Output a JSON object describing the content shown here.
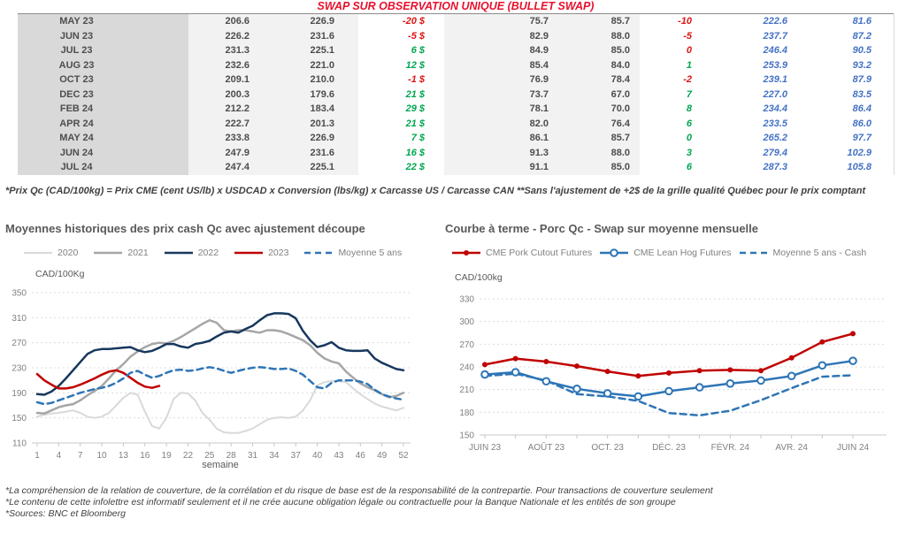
{
  "title": "SWAP SUR OBSERVATION UNIQUE (BULLET SWAP)",
  "table": {
    "rows": [
      {
        "month": "MAY 23",
        "qc_cme": "206.6",
        "qc_cash": "226.9",
        "qc_diff": "-20 $",
        "qc_diff_color": "neg",
        "us_cme": "75.7",
        "us_cash": "85.7",
        "us_diff": "-10",
        "us_diff_color": "neg",
        "swap_cad": "222.6",
        "swap_us": "81.6"
      },
      {
        "month": "JUN 23",
        "qc_cme": "226.2",
        "qc_cash": "231.6",
        "qc_diff": "-5 $",
        "qc_diff_color": "neg",
        "us_cme": "82.9",
        "us_cash": "88.0",
        "us_diff": "-5",
        "us_diff_color": "neg",
        "swap_cad": "237.7",
        "swap_us": "87.2"
      },
      {
        "month": "JUL 23",
        "qc_cme": "231.3",
        "qc_cash": "225.1",
        "qc_diff": "6 $",
        "qc_diff_color": "pos",
        "us_cme": "84.9",
        "us_cash": "85.0",
        "us_diff": "0",
        "us_diff_color": "neg",
        "swap_cad": "246.4",
        "swap_us": "90.5"
      },
      {
        "month": "AUG 23",
        "qc_cme": "232.6",
        "qc_cash": "221.0",
        "qc_diff": "12 $",
        "qc_diff_color": "pos",
        "us_cme": "85.4",
        "us_cash": "84.0",
        "us_diff": "1",
        "us_diff_color": "pos",
        "swap_cad": "253.9",
        "swap_us": "93.2"
      },
      {
        "month": "OCT 23",
        "qc_cme": "209.1",
        "qc_cash": "210.0",
        "qc_diff": "-1 $",
        "qc_diff_color": "neg",
        "us_cme": "76.9",
        "us_cash": "78.4",
        "us_diff": "-2",
        "us_diff_color": "neg",
        "swap_cad": "239.1",
        "swap_us": "87.9"
      },
      {
        "month": "DEC 23",
        "qc_cme": "200.3",
        "qc_cash": "179.6",
        "qc_diff": "21 $",
        "qc_diff_color": "pos",
        "us_cme": "73.7",
        "us_cash": "67.0",
        "us_diff": "7",
        "us_diff_color": "pos",
        "swap_cad": "227.0",
        "swap_us": "83.5"
      },
      {
        "month": "FEB 24",
        "qc_cme": "212.2",
        "qc_cash": "183.4",
        "qc_diff": "29 $",
        "qc_diff_color": "pos",
        "us_cme": "78.1",
        "us_cash": "70.0",
        "us_diff": "8",
        "us_diff_color": "pos",
        "swap_cad": "234.4",
        "swap_us": "86.4"
      },
      {
        "month": "APR 24",
        "qc_cme": "222.7",
        "qc_cash": "201.3",
        "qc_diff": "21 $",
        "qc_diff_color": "pos",
        "us_cme": "82.0",
        "us_cash": "76.4",
        "us_diff": "6",
        "us_diff_color": "pos",
        "swap_cad": "233.5",
        "swap_us": "86.0"
      },
      {
        "month": "MAY 24",
        "qc_cme": "233.8",
        "qc_cash": "226.9",
        "qc_diff": "7 $",
        "qc_diff_color": "pos",
        "us_cme": "86.1",
        "us_cash": "85.7",
        "us_diff": "0",
        "us_diff_color": "pos",
        "swap_cad": "265.2",
        "swap_us": "97.7"
      },
      {
        "month": "JUN 24",
        "qc_cme": "247.9",
        "qc_cash": "231.6",
        "qc_diff": "16 $",
        "qc_diff_color": "pos",
        "us_cme": "91.3",
        "us_cash": "88.0",
        "us_diff": "3",
        "us_diff_color": "pos",
        "swap_cad": "279.4",
        "swap_us": "102.9"
      },
      {
        "month": "JUL 24",
        "qc_cme": "247.4",
        "qc_cash": "225.1",
        "qc_diff": "22 $",
        "qc_diff_color": "pos",
        "us_cme": "91.1",
        "us_cash": "85.0",
        "us_diff": "6",
        "us_diff_color": "pos",
        "swap_cad": "287.3",
        "swap_us": "105.8"
      }
    ],
    "footnote": "*Prix Qc (CAD/100kg) = Prix CME (cent US/lb) x USDCAD x Conversion (lbs/kg) x Carcasse US / Carcasse CAN **Sans l'ajustement de +2$ de la grille qualité Québec pour le prix comptant"
  },
  "colors": {
    "title_red": "#e8112d",
    "negative": "#e01414",
    "positive": "#00a651",
    "swap_blue": "#4472c4",
    "navy_2022": "#17375e",
    "red_series": "#c00000",
    "steel_blue": "#2e75b6"
  },
  "chart_data": [
    {
      "type": "line",
      "title": "Moyennes historiques des prix cash Qc avec ajustement découpe",
      "y_unit": "CAD/100Kg",
      "xlabel": "semaine",
      "ylim": [
        110,
        350
      ],
      "ystep": 40,
      "x_ticks": [
        1,
        4,
        7,
        10,
        13,
        16,
        19,
        22,
        25,
        28,
        31,
        34,
        37,
        40,
        43,
        46,
        49,
        52
      ],
      "grid": true,
      "legend_position": "top",
      "series": [
        {
          "name": "2020",
          "color": "#d9d9d9",
          "width": 2,
          "values": [
            152,
            155,
            157,
            158,
            160,
            162,
            158,
            152,
            150,
            152,
            158,
            170,
            182,
            190,
            187,
            160,
            137,
            133,
            150,
            180,
            190,
            189,
            178,
            158,
            147,
            133,
            127,
            126,
            126,
            129,
            133,
            140,
            147,
            150,
            151,
            150,
            152,
            162,
            178,
            202,
            207,
            209,
            209,
            207,
            197,
            188,
            180,
            173,
            168,
            165,
            162,
            166
          ]
        },
        {
          "name": "2021",
          "color": "#a6a6a6",
          "width": 2.5,
          "values": [
            158,
            157,
            162,
            167,
            170,
            172,
            178,
            186,
            193,
            201,
            213,
            226,
            236,
            248,
            256,
            263,
            268,
            270,
            269,
            273,
            279,
            286,
            293,
            300,
            306,
            302,
            290,
            288,
            290,
            290,
            288,
            286,
            290,
            290,
            288,
            284,
            279,
            274,
            266,
            254,
            245,
            240,
            237,
            224,
            214,
            205,
            199,
            194,
            188,
            183,
            185,
            190
          ]
        },
        {
          "name": "2022",
          "color": "#17375e",
          "width": 2.5,
          "values": [
            188,
            187,
            192,
            201,
            213,
            226,
            239,
            252,
            258,
            260,
            260,
            261,
            262,
            263,
            258,
            255,
            257,
            262,
            268,
            268,
            264,
            262,
            268,
            270,
            273,
            280,
            286,
            288,
            286,
            292,
            297,
            306,
            314,
            317,
            317,
            316,
            309,
            289,
            274,
            263,
            266,
            271,
            262,
            258,
            257,
            257,
            258,
            245,
            238,
            233,
            228,
            226
          ]
        },
        {
          "name": "2023",
          "color": "#c00000",
          "width": 2.5,
          "values": [
            220,
            210,
            203,
            197,
            197,
            199,
            203,
            208,
            213,
            219,
            224,
            226,
            222,
            214,
            206,
            200,
            198,
            201
          ]
        },
        {
          "name": "Moyenne 5 ans",
          "color": "#2e75b6",
          "width": 2.5,
          "dash": true,
          "values": [
            175,
            172,
            174,
            178,
            182,
            186,
            190,
            193,
            196,
            198,
            201,
            206,
            213,
            222,
            225,
            219,
            214,
            217,
            222,
            226,
            227,
            225,
            226,
            229,
            231,
            229,
            225,
            222,
            225,
            228,
            230,
            231,
            230,
            228,
            228,
            229,
            225,
            219,
            209,
            199,
            197,
            206,
            210,
            210,
            210,
            208,
            204,
            195,
            188,
            184,
            181,
            179
          ]
        }
      ]
    },
    {
      "type": "line",
      "title": "Courbe à terme - Porc Qc - Swap sur moyenne mensuelle",
      "y_unit": "CAD/100kg",
      "ylim": [
        150,
        330
      ],
      "ystep": 30,
      "x_tick_labels": [
        "JUIN 23",
        "AOÛT 23",
        "OCT. 23",
        "DÉC. 23",
        "FÉVR. 24",
        "AVR. 24",
        "JUIN 24"
      ],
      "x_tick_indices": [
        0,
        2,
        4,
        6,
        8,
        10,
        12
      ],
      "n_points": 13,
      "grid": true,
      "legend_position": "top",
      "series": [
        {
          "name": "CME Pork Cutout Futures",
          "color": "#c00000",
          "width": 2.5,
          "marker": "dot",
          "values": [
            243,
            251,
            247,
            241,
            234,
            228,
            232,
            235,
            236,
            235,
            252,
            273,
            284
          ]
        },
        {
          "name": "CME Lean Hog Futures",
          "color": "#2e75b6",
          "width": 2.5,
          "marker": "open",
          "values": [
            230,
            233,
            221,
            211,
            205,
            201,
            208,
            213,
            218,
            222,
            228,
            242,
            248
          ]
        },
        {
          "name": "Moyenne 5 ans - Cash",
          "color": "#2e75b6",
          "width": 2.5,
          "dash": true,
          "values": [
            228,
            231,
            222,
            204,
            201,
            195,
            179,
            176,
            182,
            196,
            212,
            227,
            229
          ]
        }
      ]
    }
  ],
  "footer": {
    "line1": "*La compréhension de la relation de couverture, de la corrélation et du risque de base est de la responsabilité de la contrepartie. Pour transactions de couverture seulement",
    "line2": "*Le contenu de cette infolettre est informatif seulement et il ne crée aucune obligation légale ou contractuelle pour la Banque Nationale et les entités de son groupe",
    "line3": "*Sources: BNC et Bloomberg"
  }
}
